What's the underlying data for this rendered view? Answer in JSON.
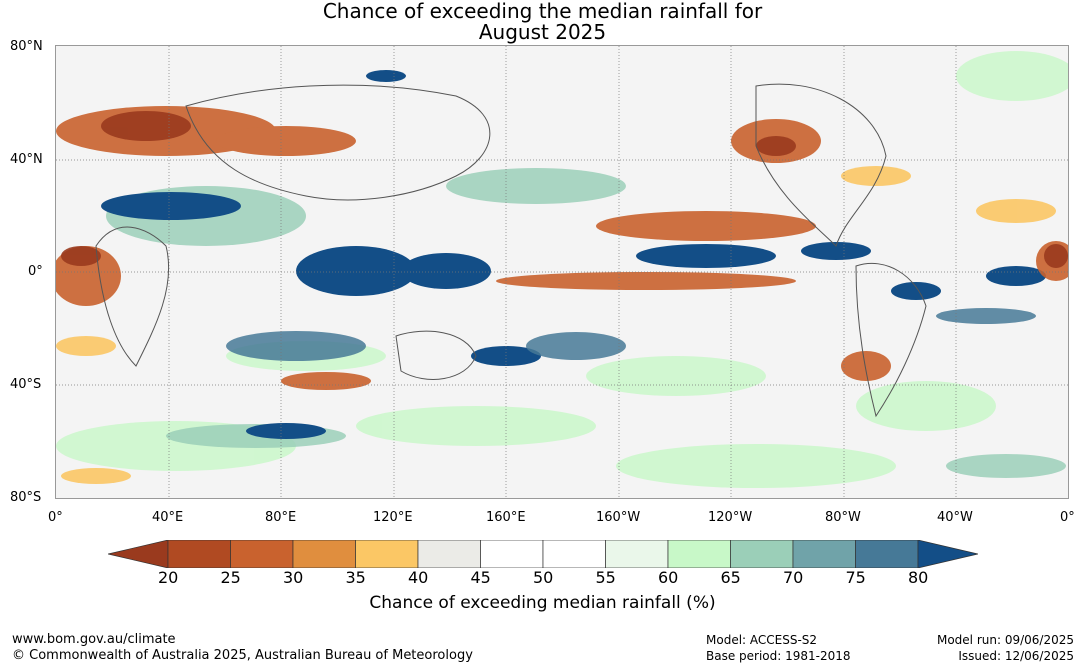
{
  "title_line1": "Chance of exceeding the median rainfall for",
  "title_line2": "August 2025",
  "lat_labels": [
    "80°N",
    "40°N",
    "0°",
    "40°S",
    "80°S"
  ],
  "lon_labels": [
    "0°",
    "40°E",
    "80°E",
    "120°E",
    "160°E",
    "160°W",
    "120°W",
    "80°W",
    "40°W",
    "0°"
  ],
  "colorbar": {
    "ticks": [
      "20",
      "25",
      "30",
      "35",
      "40",
      "45",
      "50",
      "55",
      "60",
      "65",
      "70",
      "75",
      "80"
    ],
    "colors": [
      "#9a3a1e",
      "#b04a22",
      "#c9622e",
      "#e08e3e",
      "#fbc765",
      "#ebebe7",
      "#ffffff",
      "#ffffff",
      "#eaf7ea",
      "#c8f8c8",
      "#9bcfb8",
      "#70a3a9",
      "#467997",
      "#134e87"
    ],
    "label": "Chance of exceeding median rainfall (%)"
  },
  "footer": {
    "website": "www.bom.gov.au/climate",
    "copyright": "© Commonwealth of Australia 2025, Australian Bureau of Meteorology",
    "model": "Model: ACCESS-S2",
    "base_period": "Base period: 1981-2018",
    "model_run": "Model run: 09/06/2025",
    "issued": "Issued: 12/06/2025"
  }
}
